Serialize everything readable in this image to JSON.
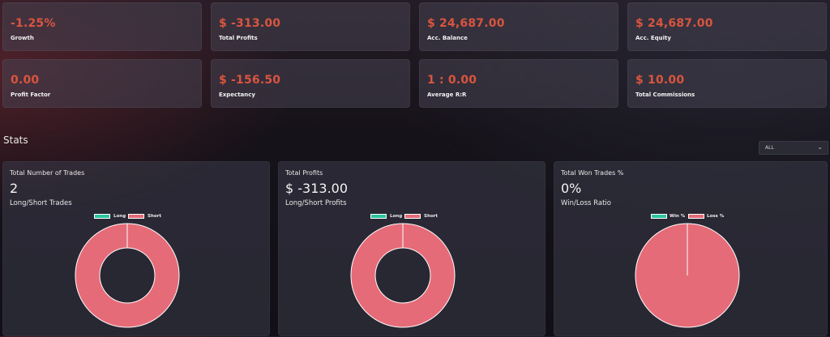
{
  "cards": [
    {
      "value": "-1.25%",
      "label": "Growth"
    },
    {
      "value": "$ -313.00",
      "label": "Total Profits"
    },
    {
      "value": "$ 24,687.00",
      "label": "Acc. Balance"
    },
    {
      "value": "$ 24,687.00",
      "label": "Acc. Equity"
    },
    {
      "value": "0.00",
      "label": "Profit Factor"
    },
    {
      "value": "$ -156.50",
      "label": "Expectancy"
    },
    {
      "value": "1 : 0.00",
      "label": "Average R:R"
    },
    {
      "value": "$ 10.00",
      "label": "Total Commissions"
    }
  ],
  "stats": {
    "title": "Stats",
    "filter": {
      "selected": "ALL",
      "chevron_icon": "chevron-down-icon"
    }
  },
  "panels": [
    {
      "title": "Total Number of Trades",
      "value": "2",
      "subtitle": "Long/Short Trades"
    },
    {
      "title": "Total Profits",
      "value": "$ -313.00",
      "subtitle": "Long/Short Profits"
    },
    {
      "title": "Total Won Trades %",
      "value": "0%",
      "subtitle": "Win/Loss Ratio"
    }
  ],
  "colors": {
    "accent": "#d9553f",
    "green": "#2ec4a0",
    "pink": "#e56b78"
  },
  "chart_data": [
    {
      "type": "pie",
      "variant": "doughnut",
      "categories": [
        "Long",
        "Short"
      ],
      "values": [
        0,
        2
      ],
      "colors": [
        "#2ec4a0",
        "#e56b78"
      ],
      "legend": "top"
    },
    {
      "type": "pie",
      "variant": "doughnut",
      "categories": [
        "Long",
        "Short"
      ],
      "values": [
        0,
        313
      ],
      "colors": [
        "#2ec4a0",
        "#e56b78"
      ],
      "legend": "top"
    },
    {
      "type": "pie",
      "variant": "pie",
      "categories": [
        "Win %",
        "Loss %"
      ],
      "values": [
        0,
        100
      ],
      "colors": [
        "#2ec4a0",
        "#e56b78"
      ],
      "legend": "top"
    }
  ]
}
